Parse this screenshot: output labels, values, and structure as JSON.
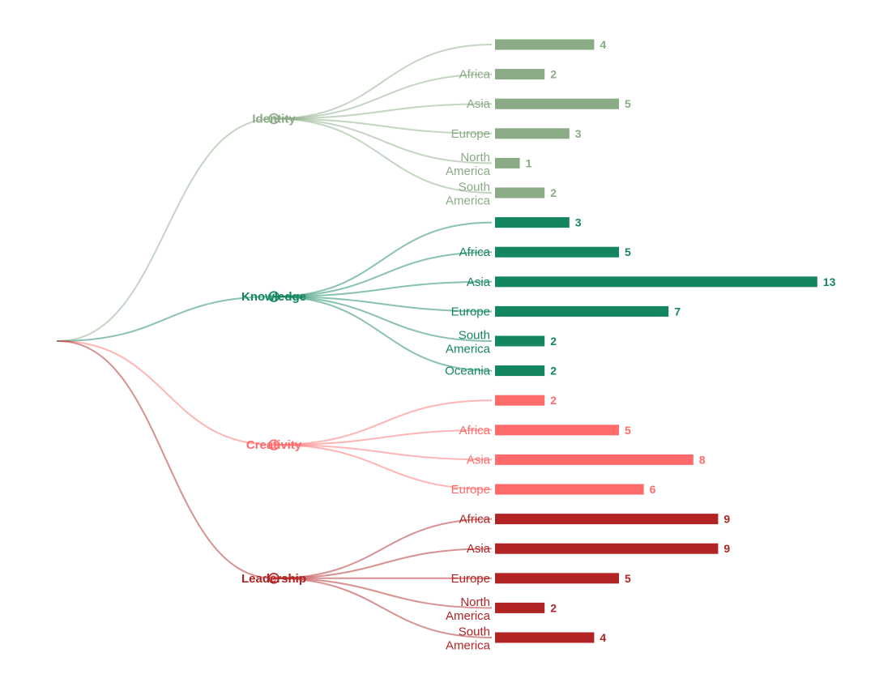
{
  "chart_data": {
    "type": "bar",
    "layout": "collapsible-tree-with-bars",
    "root": "",
    "categories": [
      {
        "name": "Identity",
        "color": "#8aab85",
        "leaves": [
          {
            "label": "",
            "value": 4
          },
          {
            "label": "Africa",
            "value": 2
          },
          {
            "label": "Asia",
            "value": 5
          },
          {
            "label": "Europe",
            "value": 3
          },
          {
            "label": "North\nAmerica",
            "value": 1
          },
          {
            "label": "South\nAmerica",
            "value": 2
          }
        ]
      },
      {
        "name": "Knowledge",
        "color": "#13855f",
        "leaves": [
          {
            "label": "",
            "value": 3
          },
          {
            "label": "Africa",
            "value": 5
          },
          {
            "label": "Asia",
            "value": 13
          },
          {
            "label": "Europe",
            "value": 7
          },
          {
            "label": "South\nAmerica",
            "value": 2
          },
          {
            "label": "Oceania",
            "value": 2
          }
        ]
      },
      {
        "name": "Creativity",
        "color": "#ff6b6b",
        "leaves": [
          {
            "label": "",
            "value": 2
          },
          {
            "label": "Africa",
            "value": 5
          },
          {
            "label": "Asia",
            "value": 8
          },
          {
            "label": "Europe",
            "value": 6
          }
        ]
      },
      {
        "name": "Leadership",
        "color": "#b22424",
        "leaves": [
          {
            "label": "Africa",
            "value": 9
          },
          {
            "label": "Asia",
            "value": 9
          },
          {
            "label": "Europe",
            "value": 5
          },
          {
            "label": "North\nAmerica",
            "value": 2
          },
          {
            "label": "South\nAmerica",
            "value": 4
          }
        ]
      }
    ],
    "value_max": 13,
    "title": "",
    "xlabel": "",
    "ylabel": "",
    "grid": false,
    "legend": "none"
  }
}
